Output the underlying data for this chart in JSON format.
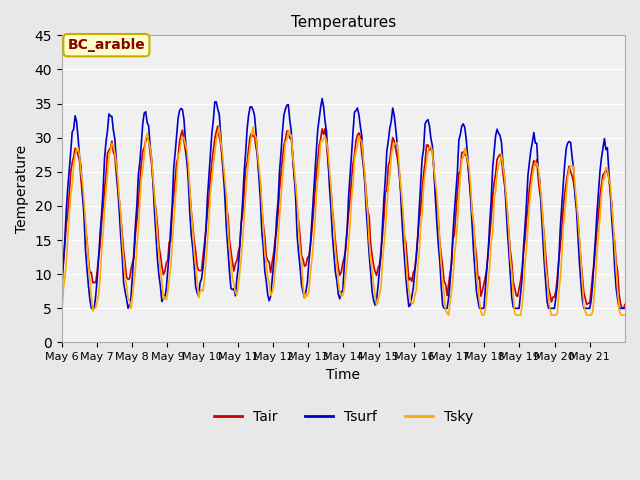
{
  "title": "Temperatures",
  "xlabel": "Time",
  "ylabel": "Temperature",
  "annotation": "BC_arable",
  "ylim": [
    0,
    45
  ],
  "legend_entries": [
    "Tair",
    "Tsurf",
    "Tsky"
  ],
  "line_colors": [
    "#cc0000",
    "#0000cc",
    "#ffaa00"
  ],
  "background_color": "#e8e8e8",
  "plot_bg_color": "#f0f0f0",
  "x_tick_labels": [
    "May 6",
    "May 7",
    "May 8",
    "May 9",
    "May 10",
    "May 11",
    "May 12",
    "May 13",
    "May 14",
    "May 15",
    "May 16",
    "May 17",
    "May 18",
    "May 19",
    "May 20",
    "May 21"
  ],
  "yticks": [
    0,
    5,
    10,
    15,
    20,
    25,
    30,
    35,
    40,
    45
  ]
}
